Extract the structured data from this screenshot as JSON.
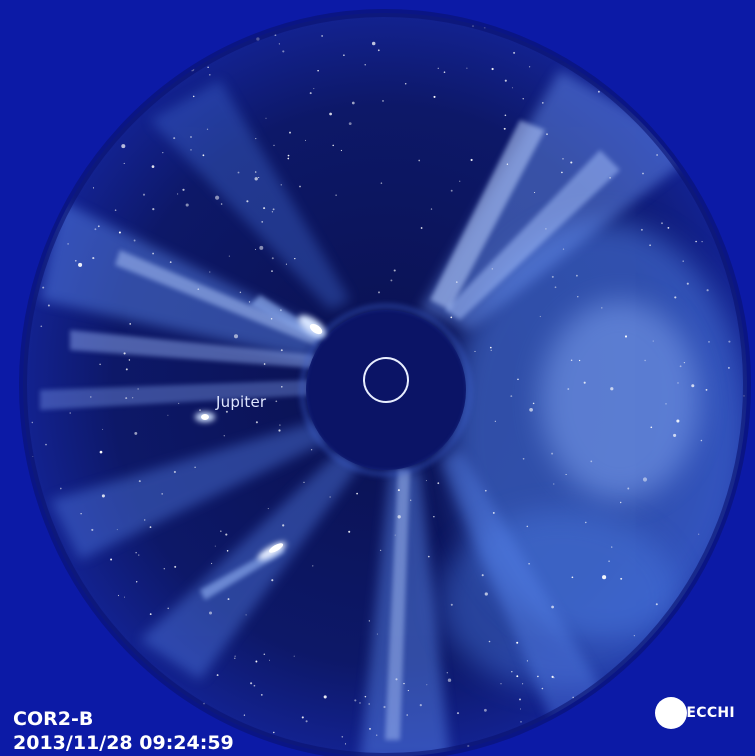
{
  "image": {
    "instrument": "COR2-B",
    "timestamp": "2013/11/28 09:24:59",
    "object_label": "Jupiter",
    "logo_text": "SECCHI"
  },
  "colors": {
    "background": "#0c1aa6",
    "field_dark": "#0a1250",
    "occulter": "#0b1466",
    "corona": "#9fc0ff",
    "text": "#ffffff"
  }
}
